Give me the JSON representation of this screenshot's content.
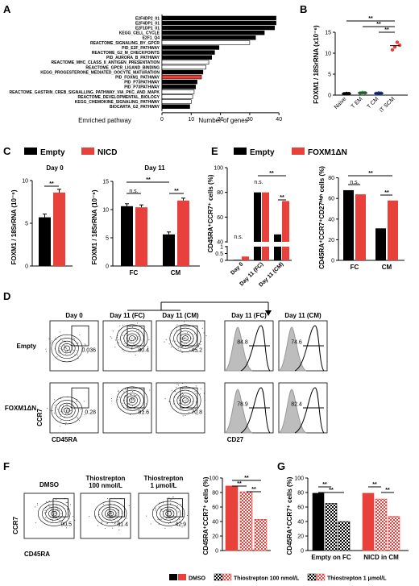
{
  "panels": [
    "A",
    "B",
    "C",
    "D",
    "E",
    "F",
    "G"
  ],
  "colors": {
    "black": "#000000",
    "red": "#e8403a",
    "white": "#ffffff",
    "gray": "#bdbdbd"
  },
  "panelA": {
    "xlabel": "Number of genes",
    "ylabel": "Emriched pathway",
    "xticks": [
      "0",
      "10",
      "20",
      "30",
      "40"
    ],
    "pathways": [
      {
        "name": "E2F4DP2_01",
        "v": 39,
        "fill": "black"
      },
      {
        "name": "E2F4DP1_01",
        "v": 39,
        "fill": "black"
      },
      {
        "name": "E2F1DP1_01",
        "v": 38.5,
        "fill": "black"
      },
      {
        "name": "KEGG_CELL_CYCLE",
        "v": 35,
        "fill": "black"
      },
      {
        "name": "E2F1_Q4",
        "v": 32,
        "fill": "black"
      },
      {
        "name": "REACTOME_SIGNALING_BY_GPCR",
        "v": 30,
        "fill": "white"
      },
      {
        "name": "PID_E2F_PATHWAY",
        "v": 19.5,
        "fill": "black"
      },
      {
        "name": "REACTOME_G2_M_CHECKPOINTS",
        "v": 18,
        "fill": "black"
      },
      {
        "name": "PID_AURORA_B_PATHWAY",
        "v": 17,
        "fill": "black"
      },
      {
        "name": "REACTOME_MHC_CLASS_II_ANTIGEN_PRESENTATION",
        "v": 16,
        "fill": "white"
      },
      {
        "name": "REACTOME_GPCR_LIGAND_BINDING",
        "v": 15,
        "fill": "white"
      },
      {
        "name": "KEGG_PROGESTERONE_MEDIATED_OOCYTE_MATURATION",
        "v": 14,
        "fill": "black"
      },
      {
        "name": "PID_FOXM1_PATHWAY",
        "v": 13.5,
        "fill": "red"
      },
      {
        "name": "PID_P73PATHWAY",
        "v": 12,
        "fill": "black"
      },
      {
        "name": "PID_P73PATHWAY",
        "v": 11.5,
        "fill": "black"
      },
      {
        "name": "REACTOME_GASTRIN_CREB_SIGNALLING_PATHWAY_VIA_PKC_AND_MAPK",
        "v": 11,
        "fill": "white"
      },
      {
        "name": "REACTOME_DEVELOPMENTAL_BIOLOGY",
        "v": 10.5,
        "fill": "white"
      },
      {
        "name": "KEGG_CHEMOKINE_SIGNALING_PATHWAY",
        "v": 10,
        "fill": "white"
      },
      {
        "name": "BIOCARTA_G2_PATHWAY",
        "v": 9.5,
        "fill": "black"
      }
    ]
  },
  "panelB": {
    "ylabel": "FOXM1 / 18SrRNA (x10⁻⁶)",
    "yticks": [
      "0",
      "5",
      "10",
      "15"
    ],
    "groups": [
      {
        "label": "Naive",
        "mean": 0.35
      },
      {
        "label": "T EM",
        "mean": 0.55
      },
      {
        "label": "T CM",
        "mean": 0.45
      },
      {
        "label": "iT SCM",
        "mean": 11.8
      }
    ],
    "sig": [
      "**",
      "**",
      "**"
    ]
  },
  "panelC": {
    "ylabel": "FOXM1 / 18SrRNA (10⁻⁶)",
    "legend": [
      "Empty",
      "NICD"
    ],
    "day0": {
      "title": "Day 0",
      "yticks": [
        "0",
        "5",
        "10"
      ],
      "values": [
        5.7,
        8.6
      ],
      "sig": "**"
    },
    "day11": {
      "title": "Day 11",
      "yticks": [
        "0",
        "5",
        "10",
        "15"
      ],
      "categories": [
        "FC",
        "CM"
      ],
      "series": [
        {
          "name": "Empty",
          "values": [
            10.6,
            5.6
          ]
        },
        {
          "name": "NICD",
          "values": [
            10.4,
            11.6
          ]
        }
      ],
      "sig": [
        "**",
        "n.s.",
        "**"
      ]
    }
  },
  "panelE": {
    "legend": [
      "Empty",
      "FOXM1ΔN"
    ],
    "left": {
      "ylabel": "CD45RA⁺CCR7⁺ cells (%)",
      "yticks": [
        "0",
        "0.5",
        "1",
        "40",
        "60",
        "80",
        "100"
      ],
      "categories": [
        "Day 0",
        "Day 11 (FC)",
        "Day 11 (CM)"
      ],
      "series": [
        {
          "name": "Empty",
          "values": [
            0.04,
            80,
            46
          ]
        },
        {
          "name": "FOXM1ΔN",
          "values": [
            0.28,
            80,
            73
          ]
        }
      ],
      "sig": [
        "n.s.",
        "n.s.",
        "**",
        "**"
      ]
    },
    "right": {
      "ylabel": "CD45RA⁺CCR7⁺CD27ʰⁱᵍʰ cells (%)",
      "yticks": [
        "0",
        "20",
        "40",
        "60",
        "80"
      ],
      "categories": [
        "FC",
        "CM"
      ],
      "series": [
        {
          "name": "Empty",
          "values": [
            68,
            31
          ]
        },
        {
          "name": "FOXM1ΔN",
          "values": [
            64,
            58
          ]
        }
      ],
      "sig": [
        "n.s.",
        "**",
        "**"
      ]
    }
  },
  "panelD": {
    "rows": [
      "Empty",
      "FOXM1ΔN"
    ],
    "cols": [
      "Day 0",
      "Day 11 (FC)",
      "Day 11 (CM)"
    ],
    "histcols": [
      "Day 11 (FC)",
      "Day 11 (CM)"
    ],
    "xaxis": "CD45RA",
    "yaxis": "CCR7",
    "histaxis": "CD27",
    "gates": [
      [
        "0.036",
        "80.4",
        "45.2"
      ],
      [
        "0.28",
        "81.6",
        "70.8"
      ]
    ],
    "hist": [
      [
        "84.8",
        "74.6"
      ],
      [
        "78.9",
        "82.4"
      ]
    ]
  },
  "panelF": {
    "plots": [
      "DMSO",
      "Thiostrepton\n100 nmol/L",
      "Thiostrepton\n1 μmol/L"
    ],
    "plotTitle1": [
      "DMSO"
    ],
    "plotTitle2": [
      "Thiostrepton",
      "100 nmol/L"
    ],
    "plotTitle3": [
      "Thiostrepton",
      "1 μmol/L"
    ],
    "gates": [
      "90.5",
      "81.4",
      "42.9"
    ],
    "xaxis": "CD45RA",
    "yaxis": "CCR7",
    "bar": {
      "ylabel": "CD45RA⁺CCR7⁺ cells (%)",
      "yticks": [
        "0",
        "20",
        "40",
        "60",
        "80",
        "100"
      ],
      "values": [
        89,
        81,
        43
      ],
      "sig": [
        "**",
        "**",
        "**"
      ]
    }
  },
  "panelG": {
    "ylabel": "CD45RA⁺CCR7⁺ cells (%)",
    "yticks": [
      "0",
      "20",
      "40",
      "60",
      "80",
      "100"
    ],
    "categories": [
      "Empty on FC",
      "NICD in CM"
    ],
    "series": [
      {
        "name": "DMSO",
        "values": [
          79,
          79
        ]
      },
      {
        "name": "Thiostrepton 100 nmol/L",
        "values": [
          65,
          71
        ]
      },
      {
        "name": "Thiostrepton 1 μmol/L",
        "values": [
          40,
          47
        ]
      }
    ],
    "sig": [
      "**",
      "**",
      "**",
      "**"
    ]
  },
  "bottomLegend": [
    "DMSO",
    "Thiostrepton 100 nmol/L",
    "Thiostrepton 1 μmol/L"
  ]
}
